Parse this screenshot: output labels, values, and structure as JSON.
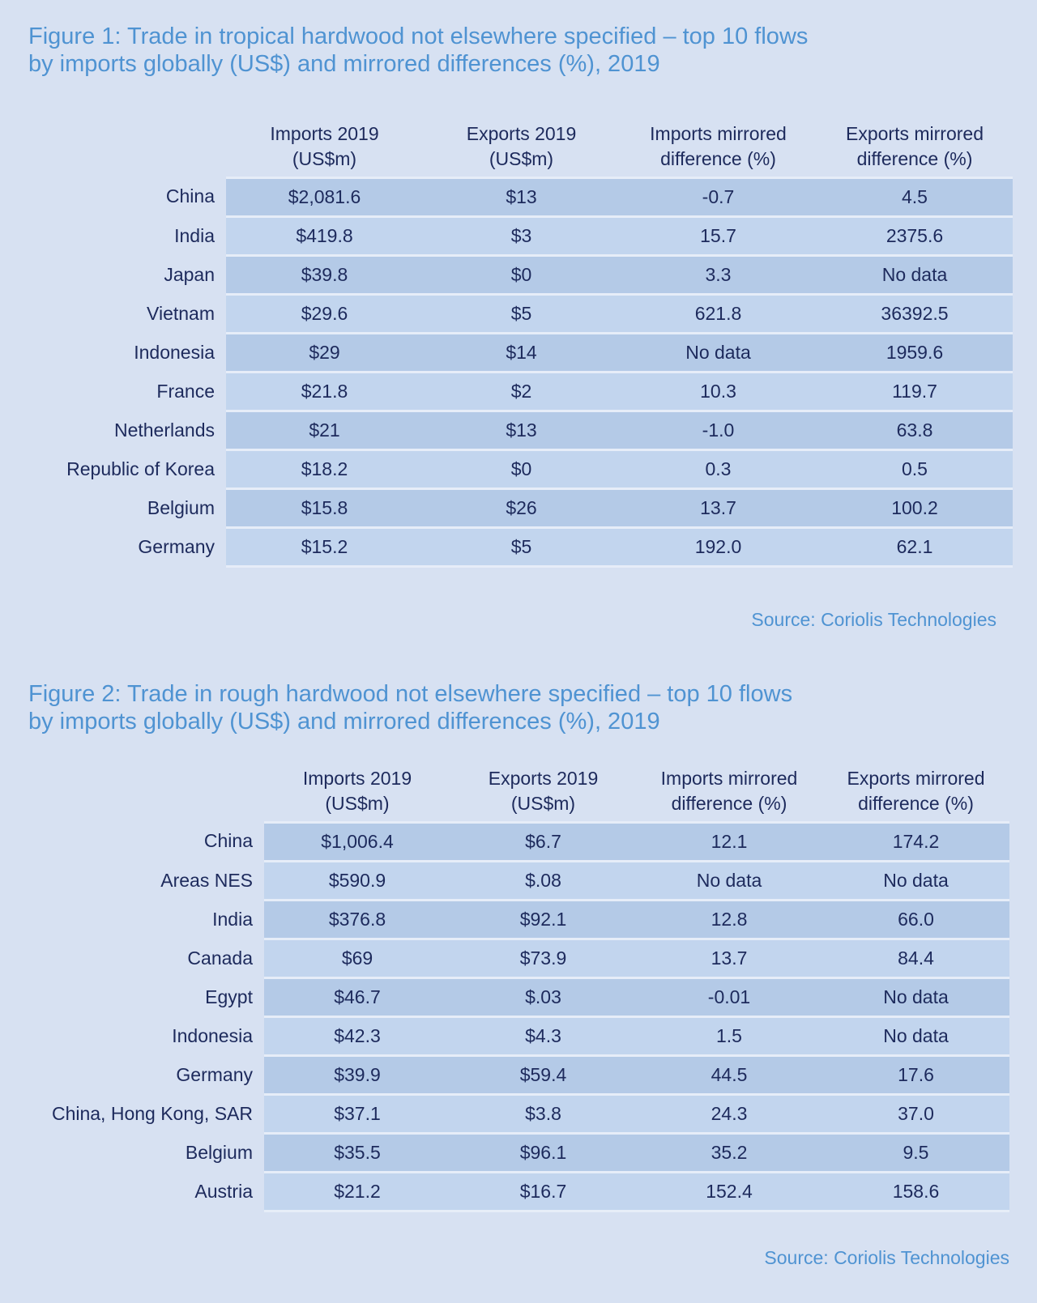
{
  "figure1": {
    "title_line1": "Figure 1: Trade in tropical hardwood not elsewhere specified – top 10 flows",
    "title_line2": "by imports globally (US$) and mirrored differences (%), 2019",
    "headers": [
      [
        "Imports 2019",
        "(US$m)"
      ],
      [
        "Exports 2019",
        "(US$m)"
      ],
      [
        "Imports mirrored",
        "difference (%)"
      ],
      [
        "Exports mirrored",
        "difference (%)"
      ]
    ],
    "rows": [
      {
        "country": "China",
        "imports": "$2,081.6",
        "exports": "$13",
        "imp_diff": "-0.7",
        "exp_diff": "4.5"
      },
      {
        "country": "India",
        "imports": "$419.8",
        "exports": "$3",
        "imp_diff": "15.7",
        "exp_diff": "2375.6"
      },
      {
        "country": "Japan",
        "imports": "$39.8",
        "exports": "$0",
        "imp_diff": "3.3",
        "exp_diff": "No data"
      },
      {
        "country": "Vietnam",
        "imports": "$29.6",
        "exports": "$5",
        "imp_diff": "621.8",
        "exp_diff": "36392.5"
      },
      {
        "country": "Indonesia",
        "imports": "$29",
        "exports": "$14",
        "imp_diff": "No data",
        "exp_diff": "1959.6"
      },
      {
        "country": "France",
        "imports": "$21.8",
        "exports": "$2",
        "imp_diff": "10.3",
        "exp_diff": "119.7"
      },
      {
        "country": "Netherlands",
        "imports": "$21",
        "exports": "$13",
        "imp_diff": "-1.0",
        "exp_diff": "63.8"
      },
      {
        "country": "Republic of Korea",
        "imports": "$18.2",
        "exports": "$0",
        "imp_diff": "0.3",
        "exp_diff": "0.5"
      },
      {
        "country": "Belgium",
        "imports": "$15.8",
        "exports": "$26",
        "imp_diff": "13.7",
        "exp_diff": "100.2"
      },
      {
        "country": "Germany",
        "imports": "$15.2",
        "exports": "$5",
        "imp_diff": "192.0",
        "exp_diff": "62.1"
      }
    ],
    "source": "Source: Coriolis Technologies"
  },
  "figure2": {
    "title_line1": "Figure 2: Trade in rough hardwood not elsewhere specified – top 10 flows",
    "title_line2": "by imports globally (US$) and mirrored differences (%), 2019",
    "headers": [
      [
        "Imports 2019",
        "(US$m)"
      ],
      [
        "Exports 2019",
        "(US$m)"
      ],
      [
        "Imports mirrored",
        "difference (%)"
      ],
      [
        "Exports mirrored",
        "difference (%)"
      ]
    ],
    "rows": [
      {
        "country": "China",
        "imports": "$1,006.4",
        "exports": "$6.7",
        "imp_diff": "12.1",
        "exp_diff": "174.2"
      },
      {
        "country": "Areas NES",
        "imports": "$590.9",
        "exports": "$.08",
        "imp_diff": "No data",
        "exp_diff": "No data"
      },
      {
        "country": "India",
        "imports": "$376.8",
        "exports": "$92.1",
        "imp_diff": "12.8",
        "exp_diff": "66.0"
      },
      {
        "country": "Canada",
        "imports": "$69",
        "exports": "$73.9",
        "imp_diff": "13.7",
        "exp_diff": "84.4"
      },
      {
        "country": "Egypt",
        "imports": "$46.7",
        "exports": "$.03",
        "imp_diff": "-0.01",
        "exp_diff": "No data"
      },
      {
        "country": "Indonesia",
        "imports": "$42.3",
        "exports": "$4.3",
        "imp_diff": "1.5",
        "exp_diff": "No data"
      },
      {
        "country": "Germany",
        "imports": "$39.9",
        "exports": "$59.4",
        "imp_diff": "44.5",
        "exp_diff": "17.6"
      },
      {
        "country": "China, Hong Kong, SAR",
        "imports": "$37.1",
        "exports": "$3.8",
        "imp_diff": "24.3",
        "exp_diff": "37.0"
      },
      {
        "country": "Belgium",
        "imports": "$35.5",
        "exports": "$96.1",
        "imp_diff": "35.2",
        "exp_diff": "9.5"
      },
      {
        "country": "Austria",
        "imports": "$21.2",
        "exports": "$16.7",
        "imp_diff": "152.4",
        "exp_diff": "158.6"
      }
    ],
    "source": "Source: Coriolis Technologies"
  }
}
